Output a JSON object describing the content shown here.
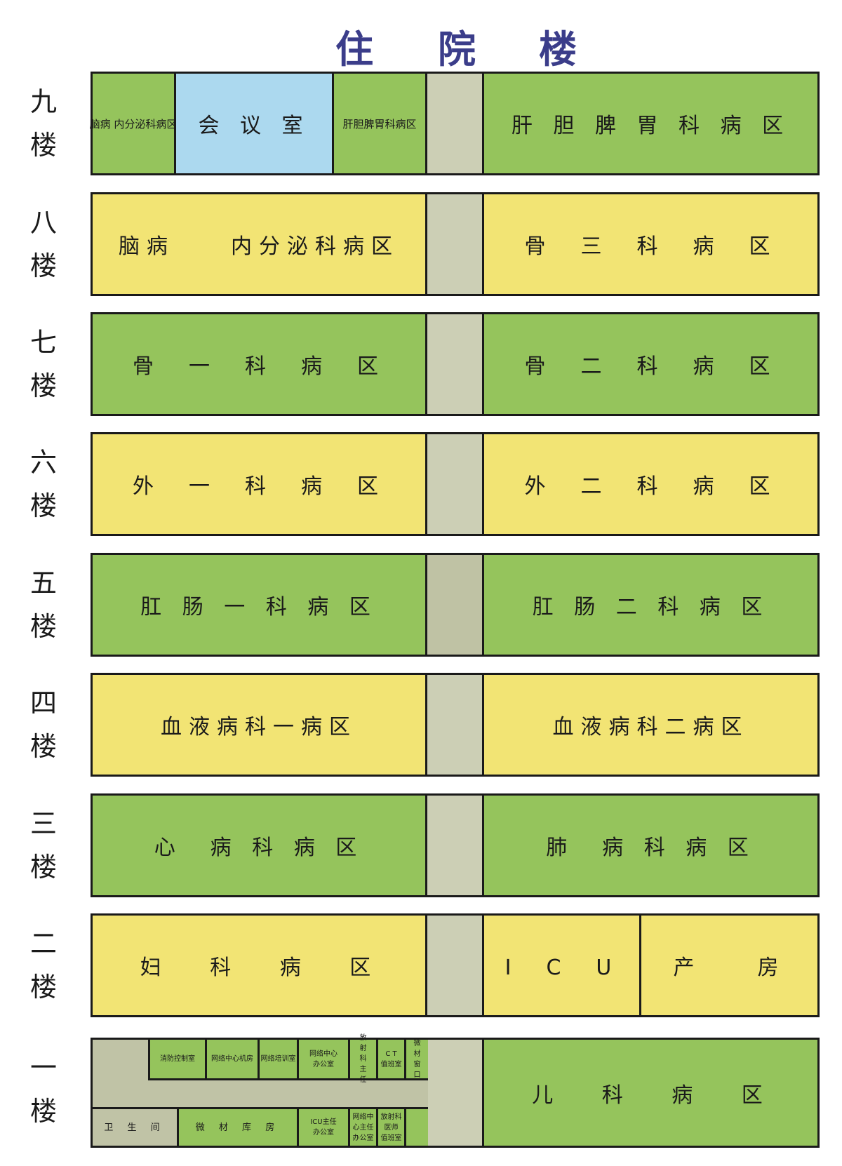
{
  "title": [
    "住",
    "院",
    "楼"
  ],
  "colors": {
    "title": "#3b3d8a",
    "green": "#95c45c",
    "yellow": "#f2e474",
    "blue": "#acd9ef",
    "corridor": "#cccfb5"
  },
  "floors": [
    {
      "label": [
        "九",
        "楼"
      ],
      "rooms": [
        "脑病 内分泌科病区",
        "会 议 室",
        "肝胆脾胃科病区",
        "肝 胆 脾 胃 科 病 区"
      ]
    },
    {
      "label": [
        "八",
        "楼"
      ],
      "rooms": [
        "脑病　　内分泌科病区",
        "骨　三　科　病　区"
      ]
    },
    {
      "label": [
        "七",
        "楼"
      ],
      "rooms": [
        "骨　一　科　病　区",
        "骨　二　科　病　区"
      ]
    },
    {
      "label": [
        "六",
        "楼"
      ],
      "rooms": [
        "外　一　科　病　区",
        "外　二　科　病　区"
      ]
    },
    {
      "label": [
        "五",
        "楼"
      ],
      "rooms": [
        "肛 肠 一 科 病 区",
        "肛 肠 二 科 病 区"
      ]
    },
    {
      "label": [
        "四",
        "楼"
      ],
      "rooms": [
        "血液病科一病区",
        "血液病科二病区"
      ]
    },
    {
      "label": [
        "三",
        "楼"
      ],
      "rooms": [
        "心　病 科 病 区",
        "肺　病 科 病 区"
      ]
    },
    {
      "label": [
        "二",
        "楼"
      ],
      "rooms": [
        "妇　 科　 病　 区",
        "I　C　U",
        "产　　房"
      ]
    },
    {
      "label": [
        "一",
        "楼"
      ],
      "rooms": [
        "儿　 科　 病　 区"
      ],
      "top_row": [
        "消防控制室",
        "网络中心机房",
        "网络培训室",
        "网络中心\n办公室",
        "放\n射\n科\n主\n任",
        "C T\n值班室",
        "微\n材\n窗\n口"
      ],
      "bottom_row": [
        "卫 生 间",
        "微 材 库 房",
        "ICU主任\n办公室",
        "网络中\n心主任\n办公室",
        "放射科\n医师\n值班室",
        ""
      ]
    }
  ]
}
